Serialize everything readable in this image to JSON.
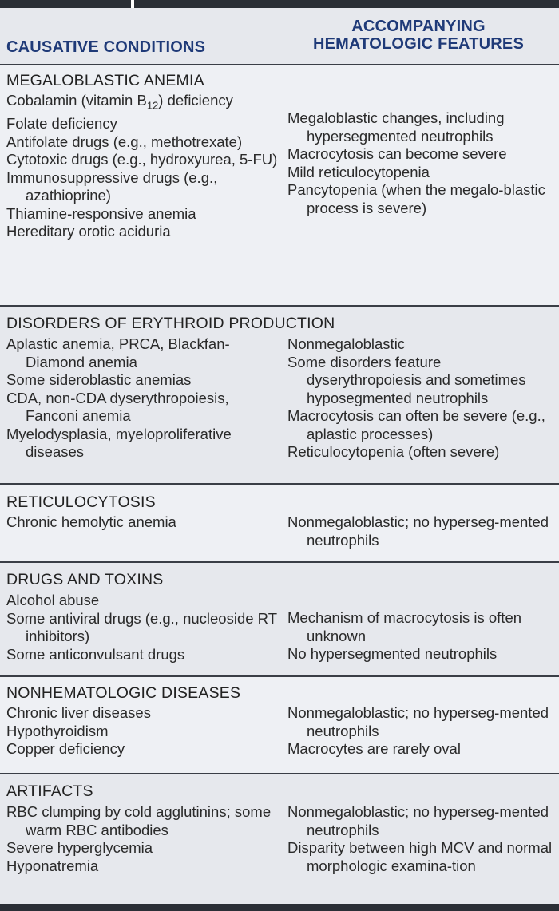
{
  "header": {
    "left": "CAUSATIVE CONDITIONS",
    "right_line1": "ACCOMPANYING",
    "right_line2": "HEMATOLOGIC FEATURES"
  },
  "sections": [
    {
      "title": "MEGALOBLASTIC ANEMIA",
      "causes": [
        "Cobalamin (vitamin B12) deficiency",
        "Folate deficiency",
        "Antifolate drugs (e.g., methotrexate)",
        "Cytotoxic drugs (e.g., hydroxyurea, 5-FU)",
        "Immunosuppressive drugs (e.g., azathioprine)",
        "Thiamine-responsive anemia",
        "Hereditary orotic aciduria"
      ],
      "features": [
        "Megaloblastic changes, including hypersegmented neutrophils",
        "Macrocytosis can become severe",
        "Mild reticulocytopenia",
        "Pancytopenia (when the megalo-blastic process is severe)"
      ]
    },
    {
      "title": "DISORDERS OF ERYTHROID PRODUCTION",
      "causes": [
        "Aplastic anemia, PRCA, Blackfan-Diamond anemia",
        "Some sideroblastic anemias",
        "CDA, non-CDA dyserythropoiesis, Fanconi anemia",
        "Myelodysplasia, myeloproliferative diseases"
      ],
      "features": [
        "Nonmegaloblastic",
        "Some disorders feature dyserythropoiesis and sometimes hyposegmented neutrophils",
        "Macrocytosis can often be severe (e.g., aplastic processes)",
        "Reticulocytopenia (often severe)"
      ]
    },
    {
      "title": "RETICULOCYTOSIS",
      "causes": [
        "Chronic hemolytic anemia"
      ],
      "features": [
        "Nonmegaloblastic; no hyperseg-mented neutrophils"
      ]
    },
    {
      "title": "DRUGS AND TOXINS",
      "causes": [
        "Alcohol abuse",
        "Some antiviral drugs (e.g., nucleoside RT inhibitors)",
        "Some anticonvulsant drugs"
      ],
      "features": [
        "Mechanism of macrocytosis is often unknown",
        "No hypersegmented neutrophils"
      ]
    },
    {
      "title": "NONHEMATOLOGIC DISEASES",
      "causes": [
        "Chronic liver diseases",
        "Hypothyroidism",
        "Copper deficiency"
      ],
      "features": [
        "Nonmegaloblastic; no hyperseg-mented neutrophils",
        "Macrocytes are rarely oval"
      ]
    },
    {
      "title": "ARTIFACTS",
      "causes": [
        "RBC clumping by cold agglutinins; some warm RBC antibodies",
        "Severe hyperglycemia",
        "Hyponatremia"
      ],
      "features": [
        "Nonmegaloblastic; no hyperseg-mented neutrophils",
        "Disparity between high MCV and normal morphologic examina-tion"
      ]
    }
  ]
}
